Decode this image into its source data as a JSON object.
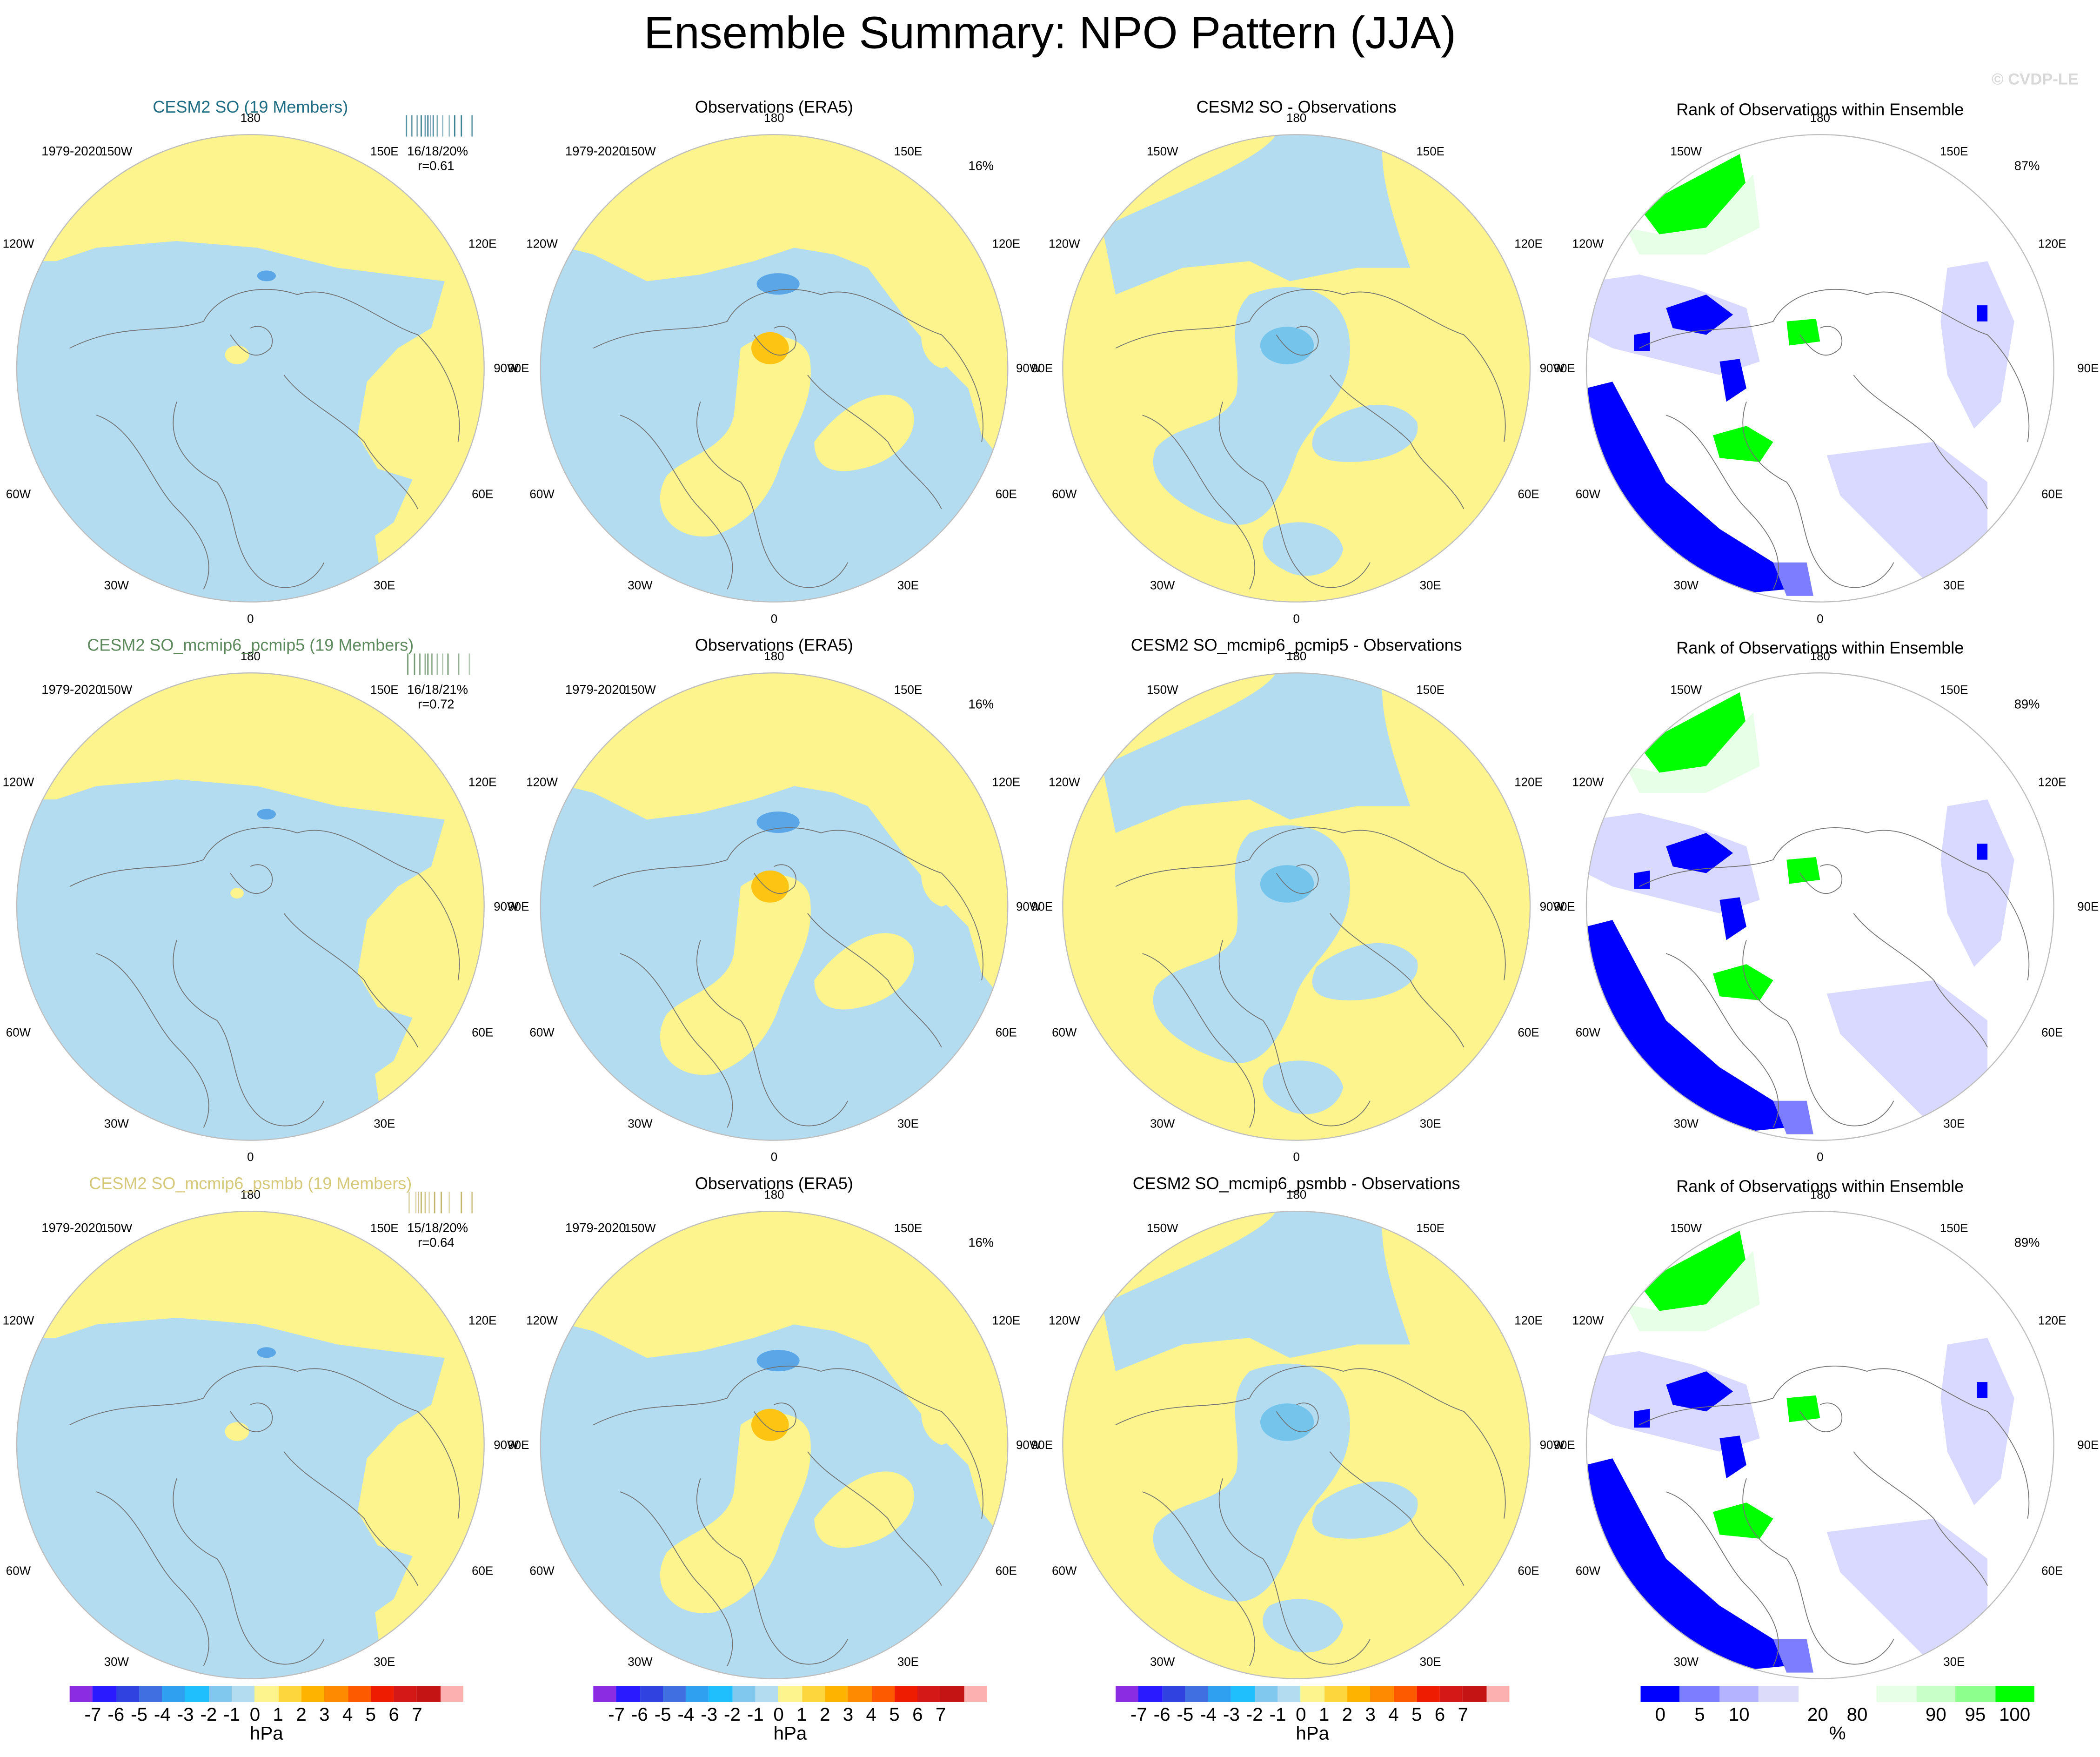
{
  "page_title": "Ensemble Summary: NPO Pattern (JJA)",
  "watermark": "© CVDP-LE",
  "icons": {
    "legend": "color-scale"
  },
  "colors": {
    "neg1": "#b3dcf0",
    "neg2": "#74c4ec",
    "neg3": "#5aa6e6",
    "pos1": "#fdf48e",
    "pos2": "#fdd63d",
    "pos3": "#fdc414",
    "rank_lo1": "#0000ff",
    "rank_lo2": "#7d7dff",
    "rank_lo3": "#d9d9ff",
    "rank_hi1": "#e6ffe6",
    "rank_hi2": "#b3ffb3",
    "rank_hi3": "#00ff00",
    "coast": "#707070"
  },
  "longitude_labels": [
    "180",
    "150E",
    "120E",
    "90E",
    "60E",
    "30E",
    "0",
    "30W",
    "60W",
    "90W",
    "120W",
    "150W"
  ],
  "rows": [
    {
      "ensemble_title": "CESM2 SO (19 Members)",
      "title_color": "#1e6d84",
      "period": "1979-2020",
      "stats": "16/18/20%",
      "corr": "r=0.61",
      "bar_color": "#1e6d84",
      "obs_title": "Observations (ERA5)",
      "obs_period": "1979-2020",
      "obs_pct": "16%",
      "diff_title": "CESM2 SO - Observations",
      "rank_title": "Rank of Observations within Ensemble",
      "rank_pct": "87%"
    },
    {
      "ensemble_title": "CESM2 SO_mcmip6_pcmip5 (19 Members)",
      "title_color": "#5d8a5d",
      "period": "1979-2020",
      "stats": "16/18/21%",
      "corr": "r=0.72",
      "bar_color": "#5d8a5d",
      "obs_title": "Observations (ERA5)",
      "obs_period": "1979-2020",
      "obs_pct": "16%",
      "diff_title": "CESM2 SO_mcmip6_pcmip5 - Observations",
      "rank_title": "Rank of Observations within Ensemble",
      "rank_pct": "89%"
    },
    {
      "ensemble_title": "CESM2 SO_mcmip6_psmbb (19 Members)",
      "title_color": "#d6c97a",
      "period": "1979-2020",
      "stats": "15/18/20%",
      "corr": "r=0.64",
      "bar_color": "#b8a84f",
      "obs_title": "Observations (ERA5)",
      "obs_period": "1979-2020",
      "obs_pct": "16%",
      "diff_title": "CESM2 SO_mcmip6_psmbb - Observations",
      "rank_title": "Rank of Observations within Ensemble",
      "rank_pct": "89%"
    }
  ],
  "colorbars": [
    {
      "unit": "hPa",
      "colors": [
        "#8b2be2",
        "#2a1aff",
        "#3043e0",
        "#3f6fe0",
        "#2f9fef",
        "#1fbffd",
        "#80c8ee",
        "#b3dcf0",
        "#fdf48e",
        "#fdd63d",
        "#fdb300",
        "#fd8a00",
        "#fd5a00",
        "#ee1c00",
        "#d41818",
        "#c41414",
        "#fdb0b0"
      ],
      "ticks": [
        "-7",
        "-6",
        "-5",
        "-4",
        "-3",
        "-2",
        "-1",
        "0",
        "1",
        "2",
        "3",
        "4",
        "5",
        "6",
        "7"
      ]
    },
    {
      "unit": "hPa",
      "colors": [
        "#8b2be2",
        "#2a1aff",
        "#3043e0",
        "#3f6fe0",
        "#2f9fef",
        "#1fbffd",
        "#80c8ee",
        "#b3dcf0",
        "#fdf48e",
        "#fdd63d",
        "#fdb300",
        "#fd8a00",
        "#fd5a00",
        "#ee1c00",
        "#d41818",
        "#c41414",
        "#fdb0b0"
      ],
      "ticks": [
        "-7",
        "-6",
        "-5",
        "-4",
        "-3",
        "-2",
        "-1",
        "0",
        "1",
        "2",
        "3",
        "4",
        "5",
        "6",
        "7"
      ]
    },
    {
      "unit": "hPa",
      "colors": [
        "#8b2be2",
        "#2a1aff",
        "#3043e0",
        "#3f6fe0",
        "#2f9fef",
        "#1fbffd",
        "#80c8ee",
        "#b3dcf0",
        "#fdf48e",
        "#fdd63d",
        "#fdb300",
        "#fd8a00",
        "#fd5a00",
        "#ee1c00",
        "#d41818",
        "#c41414",
        "#fdb0b0"
      ],
      "ticks": [
        "-7",
        "-6",
        "-5",
        "-4",
        "-3",
        "-2",
        "-1",
        "0",
        "1",
        "2",
        "3",
        "4",
        "5",
        "6",
        "7"
      ]
    },
    {
      "unit": "%",
      "colors": [
        "#0000ff",
        "#7d7dff",
        "#b3b3ff",
        "#dcdcfa",
        "#ffffff",
        "#ffffff",
        "#e6ffe6",
        "#c8ffc8",
        "#8cff8c",
        "#00ff00"
      ],
      "ticks": [
        "0",
        "5",
        "10",
        "20",
        "80",
        "90",
        "95",
        "100"
      ]
    }
  ]
}
